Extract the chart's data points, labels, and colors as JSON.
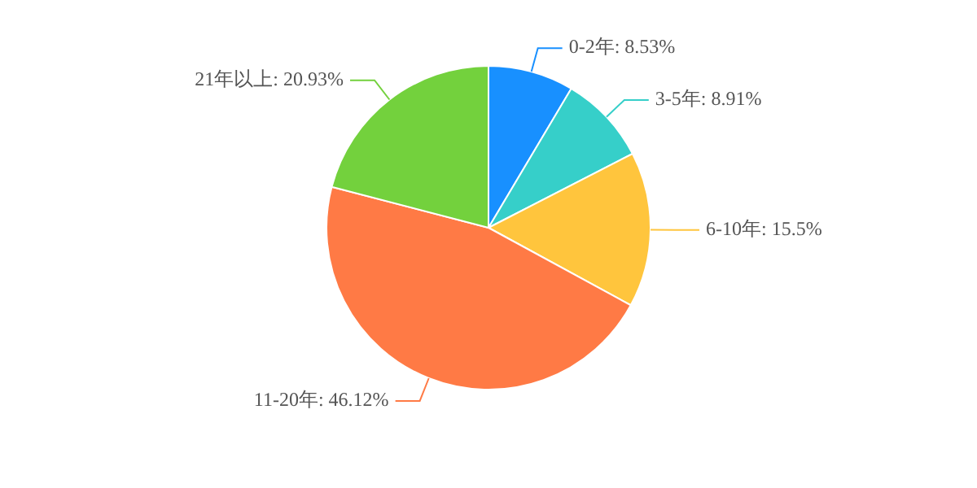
{
  "chart_data": {
    "type": "pie",
    "categories": [
      "0-2年",
      "3-5年",
      "6-10年",
      "11-20年",
      "21年以上"
    ],
    "values": [
      8.53,
      8.91,
      15.5,
      46.12,
      20.93
    ],
    "colors": [
      "#1890ff",
      "#36cfc9",
      "#ffc53d",
      "#ff7a45",
      "#73d13d"
    ],
    "value_labels": [
      "8.53%",
      "8.91%",
      "15.5%",
      "46.12%",
      "20.93%"
    ],
    "legend": false
  }
}
